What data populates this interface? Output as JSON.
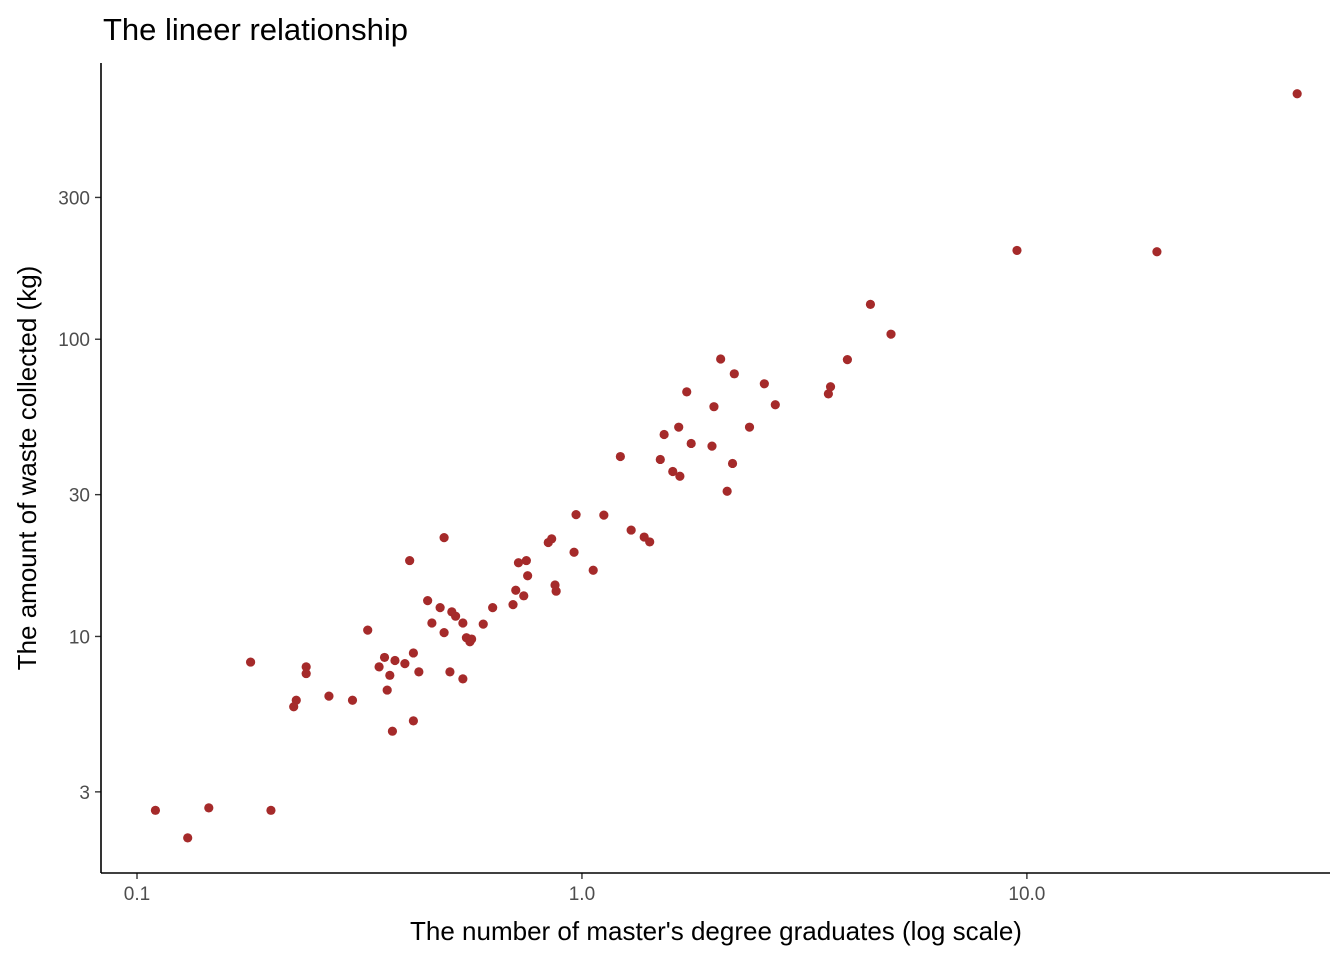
{
  "chart_data": {
    "type": "scatter",
    "title": "The lineer relationship",
    "xlabel": "The number of master's degree graduates (log scale)",
    "ylabel": "The amount of waste collected (kg)",
    "x_scale": "log10",
    "y_scale": "log10",
    "xlim": [
      0.083,
      48
    ],
    "ylim": [
      1.6,
      850
    ],
    "x_ticks": [
      0.1,
      1.0,
      10.0
    ],
    "x_tick_labels": [
      "0.1",
      "1.0",
      "10.0"
    ],
    "y_ticks": [
      3,
      10,
      30,
      100,
      300
    ],
    "y_tick_labels": [
      "3",
      "10",
      "30",
      "100",
      "300"
    ],
    "grid": false,
    "legend": "none",
    "point_color": "#A52A2A",
    "points": [
      {
        "x": 0.11,
        "y": 2.6
      },
      {
        "x": 0.13,
        "y": 2.1
      },
      {
        "x": 0.145,
        "y": 2.65
      },
      {
        "x": 0.18,
        "y": 8.2
      },
      {
        "x": 0.2,
        "y": 2.6
      },
      {
        "x": 0.225,
        "y": 5.8
      },
      {
        "x": 0.228,
        "y": 6.1
      },
      {
        "x": 0.24,
        "y": 7.5
      },
      {
        "x": 0.24,
        "y": 7.9
      },
      {
        "x": 0.27,
        "y": 6.3
      },
      {
        "x": 0.305,
        "y": 6.1
      },
      {
        "x": 0.33,
        "y": 10.5
      },
      {
        "x": 0.35,
        "y": 7.9
      },
      {
        "x": 0.36,
        "y": 8.5
      },
      {
        "x": 0.365,
        "y": 6.6
      },
      {
        "x": 0.37,
        "y": 7.4
      },
      {
        "x": 0.375,
        "y": 4.8
      },
      {
        "x": 0.38,
        "y": 8.3
      },
      {
        "x": 0.4,
        "y": 8.1
      },
      {
        "x": 0.41,
        "y": 18.0
      },
      {
        "x": 0.418,
        "y": 8.8
      },
      {
        "x": 0.418,
        "y": 5.2
      },
      {
        "x": 0.43,
        "y": 7.6
      },
      {
        "x": 0.45,
        "y": 13.2
      },
      {
        "x": 0.46,
        "y": 11.1
      },
      {
        "x": 0.48,
        "y": 12.5
      },
      {
        "x": 0.49,
        "y": 10.3
      },
      {
        "x": 0.49,
        "y": 21.5
      },
      {
        "x": 0.505,
        "y": 7.6
      },
      {
        "x": 0.51,
        "y": 12.1
      },
      {
        "x": 0.52,
        "y": 11.7
      },
      {
        "x": 0.54,
        "y": 11.1
      },
      {
        "x": 0.54,
        "y": 7.2
      },
      {
        "x": 0.55,
        "y": 9.9
      },
      {
        "x": 0.56,
        "y": 9.6
      },
      {
        "x": 0.565,
        "y": 9.8
      },
      {
        "x": 0.6,
        "y": 11.0
      },
      {
        "x": 0.63,
        "y": 12.5
      },
      {
        "x": 0.7,
        "y": 12.8
      },
      {
        "x": 0.71,
        "y": 14.3
      },
      {
        "x": 0.72,
        "y": 17.7
      },
      {
        "x": 0.74,
        "y": 13.7
      },
      {
        "x": 0.75,
        "y": 18.0
      },
      {
        "x": 0.755,
        "y": 16.0
      },
      {
        "x": 0.84,
        "y": 20.7
      },
      {
        "x": 0.855,
        "y": 21.3
      },
      {
        "x": 0.87,
        "y": 14.9
      },
      {
        "x": 0.875,
        "y": 14.2
      },
      {
        "x": 0.96,
        "y": 19.2
      },
      {
        "x": 0.97,
        "y": 25.7
      },
      {
        "x": 1.06,
        "y": 16.7
      },
      {
        "x": 1.12,
        "y": 25.6
      },
      {
        "x": 1.22,
        "y": 40.3
      },
      {
        "x": 1.29,
        "y": 22.8
      },
      {
        "x": 1.38,
        "y": 21.6
      },
      {
        "x": 1.42,
        "y": 20.8
      },
      {
        "x": 1.5,
        "y": 39.4
      },
      {
        "x": 1.53,
        "y": 47.8
      },
      {
        "x": 1.6,
        "y": 35.9
      },
      {
        "x": 1.65,
        "y": 50.6
      },
      {
        "x": 1.66,
        "y": 34.6
      },
      {
        "x": 1.72,
        "y": 66.5
      },
      {
        "x": 1.76,
        "y": 44.6
      },
      {
        "x": 1.96,
        "y": 43.7
      },
      {
        "x": 1.98,
        "y": 59.3
      },
      {
        "x": 2.05,
        "y": 85.8
      },
      {
        "x": 2.12,
        "y": 30.8
      },
      {
        "x": 2.18,
        "y": 38.2
      },
      {
        "x": 2.2,
        "y": 76.5
      },
      {
        "x": 2.38,
        "y": 50.6
      },
      {
        "x": 2.57,
        "y": 70.8
      },
      {
        "x": 2.72,
        "y": 60.2
      },
      {
        "x": 3.58,
        "y": 65.5
      },
      {
        "x": 3.62,
        "y": 69.2
      },
      {
        "x": 3.95,
        "y": 85.4
      },
      {
        "x": 4.45,
        "y": 131
      },
      {
        "x": 4.95,
        "y": 104
      },
      {
        "x": 9.5,
        "y": 199
      },
      {
        "x": 19.6,
        "y": 197
      },
      {
        "x": 40.5,
        "y": 670
      }
    ]
  }
}
